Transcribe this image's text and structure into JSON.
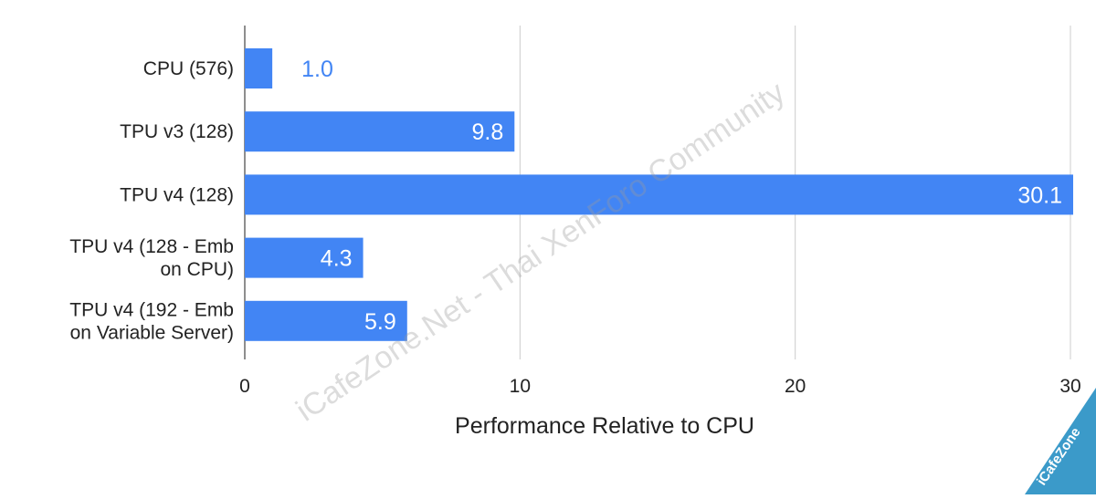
{
  "chart_data": {
    "type": "bar",
    "orientation": "horizontal",
    "categories": [
      [
        "CPU (576)"
      ],
      [
        "TPU v3 (128)"
      ],
      [
        "TPU v4 (128)"
      ],
      [
        "TPU v4 (128 - Emb",
        "on CPU)"
      ],
      [
        "TPU v4 (192 - Emb",
        "on Variable Server)"
      ]
    ],
    "values": [
      1.0,
      9.8,
      30.1,
      4.3,
      5.9
    ],
    "value_labels": [
      "1.0",
      "9.8",
      "30.1",
      "4.3",
      "5.9"
    ],
    "xlabel": "Performance Relative to CPU",
    "ylabel": "",
    "xlim": [
      0,
      30
    ],
    "xticks": [
      0,
      10,
      20,
      30
    ],
    "grid": "vertical",
    "legend": "none",
    "colors": {
      "bar": "#4285f4",
      "label_inside": "#ffffff",
      "label_outside": "#4285f4",
      "grid": "#cccccc",
      "axis_text": "#222222"
    }
  },
  "watermarks": {
    "diagonal_text": "iCafeZone.Net - Thai XenForo Community",
    "corner_badge": "iCafeZone"
  }
}
